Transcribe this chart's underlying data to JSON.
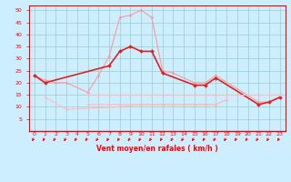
{
  "line1": {
    "color": "#ff9999",
    "linewidth": 0.8,
    "marker": "D",
    "markersize": 1.5,
    "x": [
      0,
      1,
      2,
      3,
      5,
      6,
      7,
      8,
      9,
      10,
      11,
      12,
      13,
      15,
      16,
      17,
      21,
      22,
      23
    ],
    "y": [
      23,
      21,
      20,
      20,
      16,
      23,
      31,
      47,
      48,
      50,
      47,
      25,
      24,
      20,
      20,
      23,
      12,
      12,
      14
    ]
  },
  "line2": {
    "color": "#dd2222",
    "linewidth": 1.2,
    "marker": "D",
    "markersize": 2.0,
    "x": [
      0,
      1,
      7,
      8,
      9,
      10,
      11,
      12,
      15,
      16,
      17,
      21,
      22,
      23
    ],
    "y": [
      23,
      20,
      27,
      33,
      35,
      33,
      33,
      24,
      19,
      19,
      22,
      11,
      12,
      14
    ]
  },
  "line3": {
    "color": "#ffbbbb",
    "linewidth": 0.8,
    "marker": "D",
    "markersize": 1.5,
    "x": [
      1,
      3,
      8,
      10,
      11,
      12,
      13,
      14,
      15,
      16,
      17,
      18
    ],
    "y": [
      14,
      9,
      10,
      11,
      11,
      11,
      11,
      11,
      11,
      11,
      11,
      13
    ]
  },
  "line4": {
    "color": "#ffbbbb",
    "linewidth": 0.8,
    "marker": "D",
    "markersize": 1.5,
    "x": [
      5,
      6,
      7,
      8,
      9,
      10,
      11,
      12,
      13,
      14,
      15,
      16,
      17,
      18,
      19,
      20,
      21,
      22,
      23
    ],
    "y": [
      15,
      15,
      15,
      15,
      15,
      15,
      15,
      15,
      15,
      15,
      15,
      15,
      15,
      15,
      15,
      15,
      15,
      15,
      15
    ]
  },
  "line5": {
    "color": "#ffbbbb",
    "linewidth": 0.8,
    "marker": "D",
    "markersize": 1.5,
    "x": [
      5,
      6,
      7,
      8,
      9,
      10,
      11,
      12,
      13,
      14,
      15,
      16,
      17,
      18
    ],
    "y": [
      11,
      11,
      11,
      11,
      11,
      11,
      11,
      11,
      11,
      11,
      11,
      11,
      11,
      13
    ]
  },
  "xlabel": "Vent moyen/en rafales ( km/h )",
  "xlim": [
    -0.5,
    23.5
  ],
  "ylim": [
    0,
    52
  ],
  "yticks": [
    5,
    10,
    15,
    20,
    25,
    30,
    35,
    40,
    45,
    50
  ],
  "xticks": [
    0,
    1,
    2,
    3,
    4,
    5,
    6,
    7,
    8,
    9,
    10,
    11,
    12,
    13,
    14,
    15,
    16,
    17,
    18,
    19,
    20,
    21,
    22,
    23
  ],
  "background_color": "#cceeff",
  "grid_color": "#99cccc",
  "axis_color": "#ff0000",
  "tick_color": "#ff0000",
  "xlabel_color": "#ff0000"
}
